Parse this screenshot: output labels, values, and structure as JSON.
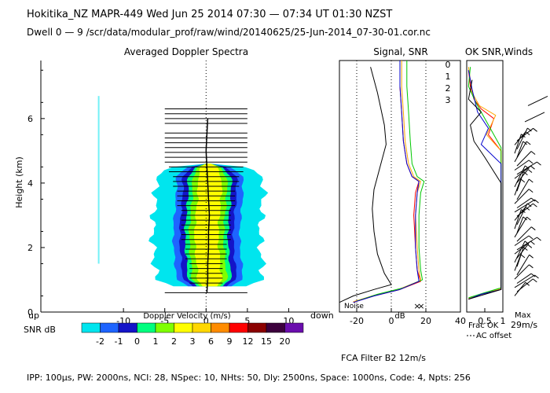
{
  "header": {
    "line1": "Hokitika_NZ   MAPR-449   Wed Jun 25 2014 07:30 — 07:34 UT 01:30 NZST",
    "line2": "Dwell  0 —  9   /scr/data/modular_prof/raw/wind/20140625/25-Jun-2014_07-30-01.cor.nc"
  },
  "footer": {
    "params": "IPP: 100μs,  PW: 2000ns,  NCI: 28,  NSpec: 10, NHts: 50,  Dly: 2500ns,  Space: 1000ns,  Code: 4,  Npts: 256",
    "fca": "FCA Filter B2 12m/s"
  },
  "chart_data": [
    {
      "type": "heatmap",
      "title": "Averaged Doppler Spectra",
      "xlabel": "Doppler Velocity (m/s)",
      "ylabel": "Height (km)",
      "xlim": [
        -20,
        15
      ],
      "ylim": [
        0,
        7.8
      ],
      "xticks": [
        "-10",
        "-5",
        "0",
        "5",
        "10"
      ],
      "yticks": [
        "0",
        "2",
        "4",
        "6"
      ],
      "direction_labels": {
        "left": "up",
        "right": "down"
      },
      "bar_heights_km": [
        0.6,
        0.9,
        1.05,
        1.2,
        1.35,
        1.5,
        1.65,
        1.8,
        1.95,
        2.1,
        2.25,
        2.4,
        2.55,
        2.7,
        2.85,
        3.0,
        3.15,
        3.3,
        3.45,
        3.6,
        3.75,
        3.9,
        4.05,
        4.2,
        4.35,
        4.5,
        4.65,
        4.8,
        4.95,
        5.1,
        5.25,
        5.4,
        5.55,
        5.85,
        6.0,
        6.15,
        6.3
      ],
      "bar_halfwidth_ms": [
        5,
        2,
        2,
        2,
        2,
        2,
        2.5,
        2.5,
        2.5,
        2.5,
        3,
        3,
        3,
        3,
        3,
        3,
        3,
        3.5,
        3.5,
        3.5,
        3.5,
        4,
        4,
        4,
        4.5,
        4.5,
        5,
        5,
        5,
        5,
        5,
        5,
        5,
        5,
        5,
        5,
        5
      ],
      "mean_velocity": [
        {
          "h": 0.6,
          "v": 0.1
        },
        {
          "h": 1.0,
          "v": 0.2
        },
        {
          "h": 1.5,
          "v": 0.2
        },
        {
          "h": 2.0,
          "v": 0.3
        },
        {
          "h": 2.5,
          "v": 0.3
        },
        {
          "h": 3.0,
          "v": 0.4
        },
        {
          "h": 3.5,
          "v": 0.3
        },
        {
          "h": 4.0,
          "v": 0.2
        },
        {
          "h": 4.5,
          "v": 0.1
        },
        {
          "h": 5.0,
          "v": 0.0
        },
        {
          "h": 5.5,
          "v": 0.1
        },
        {
          "h": 6.0,
          "v": 0.2
        }
      ]
    },
    {
      "type": "line",
      "title": "Signal, SNR",
      "xlabel": "dB",
      "xlim": [
        -30,
        40
      ],
      "ylim": [
        0,
        7.8
      ],
      "xticks": [
        "-20",
        "0",
        "20",
        "40"
      ],
      "noise_label": "Noise",
      "series": [
        {
          "name": "Signal",
          "color": "#000000",
          "points": [
            [
              -30,
              0.3
            ],
            [
              -22,
              0.5
            ],
            [
              -10,
              0.7
            ],
            [
              0,
              0.85
            ],
            [
              -4,
              1.2
            ],
            [
              -8,
              1.8
            ],
            [
              -10,
              2.5
            ],
            [
              -11,
              3.2
            ],
            [
              -10,
              3.8
            ],
            [
              -8,
              4.2
            ],
            [
              -6,
              4.6
            ],
            [
              -3,
              5.2
            ],
            [
              -4,
              5.8
            ],
            [
              -6,
              6.3
            ],
            [
              -8,
              6.8
            ],
            [
              -10,
              7.2
            ],
            [
              -12,
              7.6
            ]
          ]
        },
        {
          "name": "0",
          "color": "#ff0000",
          "points": [
            [
              -22,
              0.3
            ],
            [
              -10,
              0.5
            ],
            [
              5,
              0.7
            ],
            [
              17,
              0.95
            ],
            [
              15,
              1.3
            ],
            [
              14,
              2.0
            ],
            [
              13,
              3.0
            ],
            [
              14,
              3.7
            ],
            [
              16,
              4.05
            ],
            [
              12,
              4.2
            ],
            [
              9,
              4.6
            ],
            [
              7,
              5.3
            ],
            [
              6,
              6.2
            ],
            [
              5,
              7.0
            ],
            [
              5,
              7.8
            ]
          ]
        },
        {
          "name": "1",
          "color": "#ffa500",
          "points": [
            [
              -22,
              0.32
            ],
            [
              -10,
              0.52
            ],
            [
              5,
              0.72
            ],
            [
              17,
              0.98
            ],
            [
              16,
              1.3
            ],
            [
              15,
              2.0
            ],
            [
              14,
              3.0
            ],
            [
              15,
              3.7
            ],
            [
              17,
              4.05
            ],
            [
              13,
              4.2
            ],
            [
              10,
              4.6
            ],
            [
              8,
              5.3
            ],
            [
              7,
              6.2
            ],
            [
              6,
              7.0
            ],
            [
              6,
              7.8
            ]
          ]
        },
        {
          "name": "2",
          "color": "#00c800",
          "points": [
            [
              -20,
              0.34
            ],
            [
              -8,
              0.55
            ],
            [
              7,
              0.75
            ],
            [
              18,
              1.0
            ],
            [
              17,
              1.3
            ],
            [
              16,
              2.0
            ],
            [
              16,
              3.0
            ],
            [
              17,
              3.7
            ],
            [
              19,
              4.05
            ],
            [
              15,
              4.2
            ],
            [
              12,
              4.6
            ],
            [
              11,
              5.3
            ],
            [
              10,
              6.2
            ],
            [
              9,
              7.0
            ],
            [
              9,
              7.8
            ]
          ]
        },
        {
          "name": "3",
          "color": "#0000cd",
          "points": [
            [
              -22,
              0.3
            ],
            [
              -10,
              0.5
            ],
            [
              5,
              0.7
            ],
            [
              16,
              0.95
            ],
            [
              15,
              1.3
            ],
            [
              14,
              2.0
            ],
            [
              14,
              3.0
            ],
            [
              15,
              3.7
            ],
            [
              16,
              4.05
            ],
            [
              12,
              4.2
            ],
            [
              9,
              4.6
            ],
            [
              7,
              5.3
            ],
            [
              6,
              6.2
            ],
            [
              5,
              7.0
            ],
            [
              5,
              7.8
            ]
          ]
        }
      ]
    },
    {
      "type": "line",
      "title": "OK SNR,Winds",
      "xlabel": "Frac OK",
      "xlim": [
        0,
        1
      ],
      "ylim": [
        0,
        7.8
      ],
      "xticks": [
        "0.5",
        "1"
      ],
      "note": "AC offset",
      "series": [
        {
          "name": "0",
          "color": "#ff0000",
          "points": [
            [
              0.05,
              0.4
            ],
            [
              0.4,
              0.55
            ],
            [
              0.95,
              0.7
            ],
            [
              0.95,
              5.0
            ],
            [
              0.6,
              5.5
            ],
            [
              0.75,
              6.0
            ],
            [
              0.4,
              6.3
            ],
            [
              0.2,
              6.6
            ],
            [
              0.1,
              7.0
            ],
            [
              0.05,
              7.5
            ]
          ]
        },
        {
          "name": "1",
          "color": "#ffa500",
          "points": [
            [
              0.05,
              0.42
            ],
            [
              0.45,
              0.58
            ],
            [
              0.95,
              0.72
            ],
            [
              0.95,
              5.0
            ],
            [
              0.55,
              5.5
            ],
            [
              0.8,
              6.1
            ],
            [
              0.35,
              6.4
            ],
            [
              0.15,
              6.8
            ],
            [
              0.05,
              7.6
            ]
          ]
        },
        {
          "name": "2",
          "color": "#00c800",
          "points": [
            [
              0.05,
              0.44
            ],
            [
              0.5,
              0.6
            ],
            [
              0.95,
              0.75
            ],
            [
              0.95,
              5.1
            ],
            [
              0.7,
              5.6
            ],
            [
              0.5,
              6.0
            ],
            [
              0.25,
              6.5
            ],
            [
              0.05,
              7.0
            ],
            [
              0.1,
              7.6
            ]
          ]
        },
        {
          "name": "3",
          "color": "#0000cd",
          "points": [
            [
              0.05,
              0.4
            ],
            [
              0.4,
              0.55
            ],
            [
              0.95,
              0.7
            ],
            [
              0.95,
              4.6
            ],
            [
              0.4,
              5.2
            ],
            [
              0.6,
              5.7
            ],
            [
              0.3,
              6.2
            ],
            [
              0.15,
              6.9
            ],
            [
              0.05,
              7.5
            ]
          ]
        }
      ],
      "winds_label": "Max",
      "winds_max": "29m/s"
    }
  ],
  "snr_legend": {
    "label": "SNR dB",
    "values": [
      "-2",
      "-1",
      "0",
      "1",
      "2",
      "3",
      "6",
      "9",
      "12",
      "15",
      "20"
    ],
    "colors": [
      "#00e5ee",
      "#1e64ff",
      "#1414c8",
      "#00ff7f",
      "#7fff00",
      "#ffff00",
      "#ffd700",
      "#ff8c00",
      "#ff0000",
      "#8b0000",
      "#3c003c",
      "#6a0dad"
    ]
  },
  "colors": {
    "heat_outer": "#00e5ee",
    "heat_mid": "#1e64ff",
    "heat_dark": "#1414c8",
    "heat_green": "#00ff7f",
    "heat_lime": "#7fff00",
    "heat_yellow": "#ffff00"
  }
}
